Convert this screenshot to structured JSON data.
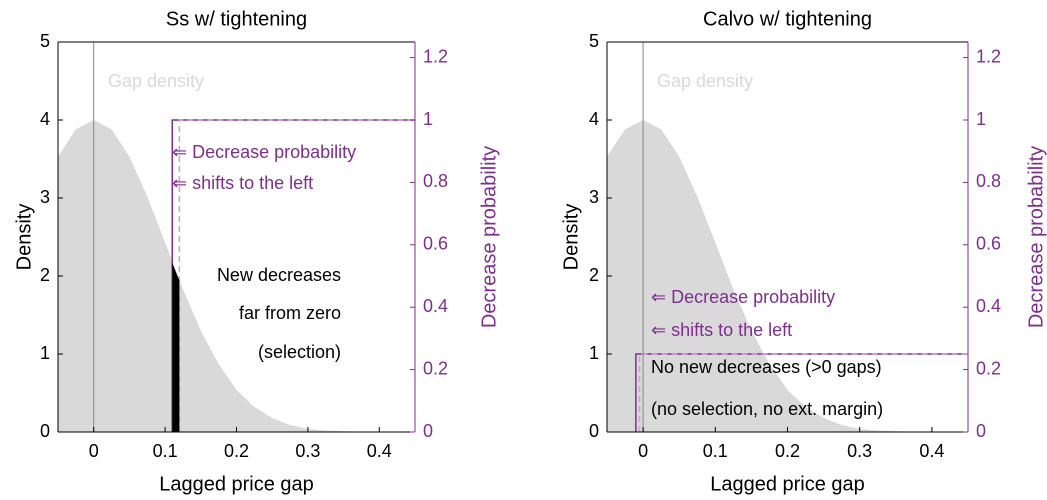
{
  "chart_data": [
    {
      "type": "line",
      "title": "Ss w/ tightening",
      "x_label": "Lagged price gap",
      "y_label": "Density",
      "y2_label": "Decrease probability",
      "xlim": [
        -0.05,
        0.45
      ],
      "xticks": [
        0,
        0.1,
        0.2,
        0.3,
        0.4
      ],
      "ylim": [
        0,
        5
      ],
      "yticks": [
        0,
        1,
        2,
        3,
        4,
        5
      ],
      "y2lim": [
        0,
        1.25
      ],
      "y2ticks": [
        0,
        0.2,
        0.4,
        0.6,
        0.8,
        1,
        1.2
      ],
      "vline": 0,
      "series": [
        {
          "name": "Gap density",
          "color": "#d9d9d9",
          "style": "area",
          "x": [
            -0.05,
            -0.025,
            0,
            0.025,
            0.05,
            0.075,
            0.1,
            0.125,
            0.15,
            0.175,
            0.2,
            0.225,
            0.25,
            0.275,
            0.3,
            0.325,
            0.35,
            0.4,
            0.45
          ],
          "values": [
            3.53,
            3.88,
            4,
            3.88,
            3.53,
            3.02,
            2.43,
            1.83,
            1.3,
            0.87,
            0.54,
            0.32,
            0.18,
            0.09,
            0.04,
            0.02,
            0.01,
            0,
            0
          ]
        },
        {
          "color": "#7e2f8e",
          "style": "solid",
          "axis": "y2",
          "x": [
            0.11,
            0.11,
            0.45
          ],
          "values": [
            0,
            1,
            1
          ]
        },
        {
          "color": "#c9a3d1",
          "style": "dashed",
          "axis": "y2",
          "x": [
            0.12,
            0.12,
            0.45
          ],
          "values": [
            0,
            1,
            1
          ]
        }
      ],
      "highlight": {
        "color": "#000000",
        "x": [
          0.11,
          0.12
        ],
        "values": [
          2.17,
          1.94
        ]
      },
      "annotations": [
        {
          "text": "⇐ Decrease probability",
          "color": "#7e2f8e"
        },
        {
          "text": "⇐ shifts to the left",
          "color": "#7e2f8e"
        },
        {
          "text": "New decreases",
          "color": "#000000"
        },
        {
          "text": "far from zero",
          "color": "#000000"
        },
        {
          "text": "(selection)",
          "color": "#000000"
        }
      ]
    },
    {
      "type": "line",
      "title": "Calvo w/ tightening",
      "x_label": "Lagged price gap",
      "y_label": "Density",
      "y2_label": "Decrease probability",
      "xlim": [
        -0.05,
        0.45
      ],
      "xticks": [
        0,
        0.1,
        0.2,
        0.3,
        0.4
      ],
      "ylim": [
        0,
        5
      ],
      "yticks": [
        0,
        1,
        2,
        3,
        4,
        5
      ],
      "y2lim": [
        0,
        1.25
      ],
      "y2ticks": [
        0,
        0.2,
        0.4,
        0.6,
        0.8,
        1,
        1.2
      ],
      "vline": 0,
      "series": [
        {
          "name": "Gap density",
          "color": "#d9d9d9",
          "style": "area",
          "x": [
            -0.05,
            -0.025,
            0,
            0.025,
            0.05,
            0.075,
            0.1,
            0.125,
            0.15,
            0.175,
            0.2,
            0.225,
            0.25,
            0.275,
            0.3,
            0.325,
            0.35,
            0.4,
            0.45
          ],
          "values": [
            3.53,
            3.88,
            4,
            3.88,
            3.53,
            3.02,
            2.43,
            1.83,
            1.3,
            0.87,
            0.54,
            0.32,
            0.18,
            0.09,
            0.04,
            0.02,
            0.01,
            0,
            0
          ]
        },
        {
          "color": "#7e2f8e",
          "style": "solid",
          "axis": "y2",
          "x": [
            -0.01,
            -0.01,
            0.45
          ],
          "values": [
            0,
            0.25,
            0.25
          ]
        },
        {
          "color": "#c9a3d1",
          "style": "dashed",
          "axis": "y2",
          "x": [
            -0.005,
            -0.005,
            0.45
          ],
          "values": [
            0,
            0.25,
            0.25
          ]
        }
      ],
      "annotations": [
        {
          "text": "⇐ Decrease probability",
          "color": "#7e2f8e"
        },
        {
          "text": "⇐ shifts to the left",
          "color": "#7e2f8e"
        },
        {
          "text": "No new decreases (>0 gaps)",
          "color": "#000000"
        },
        {
          "text": "(no selection, no ext. margin)",
          "color": "#000000"
        }
      ]
    }
  ]
}
